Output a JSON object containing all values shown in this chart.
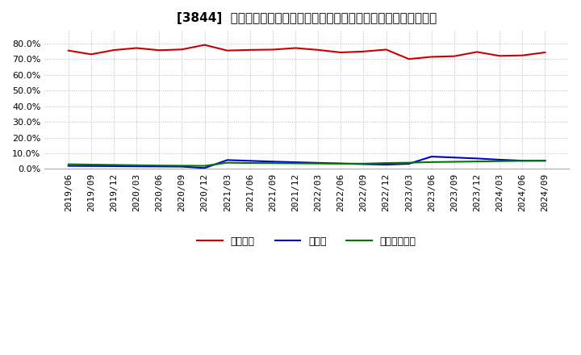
{
  "title": "[3844]  自己資本、のれん、繰延税金資産の総資産に対する比率の推移",
  "ylim": [
    0.0,
    0.88
  ],
  "yticks": [
    0.0,
    0.1,
    0.2,
    0.3,
    0.4,
    0.5,
    0.6,
    0.7,
    0.8
  ],
  "dates": [
    "2019/06",
    "2019/09",
    "2019/12",
    "2020/03",
    "2020/06",
    "2020/09",
    "2020/12",
    "2021/03",
    "2021/06",
    "2021/09",
    "2021/12",
    "2022/03",
    "2022/06",
    "2022/09",
    "2022/12",
    "2023/03",
    "2023/06",
    "2023/09",
    "2023/12",
    "2024/03",
    "2024/06",
    "2024/09"
  ],
  "jikoshihon": [
    0.754,
    0.73,
    0.757,
    0.77,
    0.756,
    0.761,
    0.79,
    0.754,
    0.758,
    0.76,
    0.77,
    0.758,
    0.742,
    0.748,
    0.76,
    0.7,
    0.714,
    0.718,
    0.745,
    0.72,
    0.723,
    0.742
  ],
  "noren": [
    0.02,
    0.019,
    0.018,
    0.017,
    0.016,
    0.015,
    0.006,
    0.057,
    0.052,
    0.047,
    0.043,
    0.039,
    0.035,
    0.031,
    0.028,
    0.033,
    0.079,
    0.073,
    0.067,
    0.059,
    0.053,
    0.052
  ],
  "kurinobe": [
    0.03,
    0.028,
    0.026,
    0.024,
    0.022,
    0.021,
    0.02,
    0.04,
    0.038,
    0.037,
    0.036,
    0.035,
    0.034,
    0.034,
    0.038,
    0.04,
    0.044,
    0.046,
    0.048,
    0.05,
    0.052,
    0.054
  ],
  "jikoshihon_color": "#cc0000",
  "noren_color": "#0000cc",
  "kurinobe_color": "#007700",
  "legend_labels": [
    "自己資本",
    "のれん",
    "繰延税金資産"
  ],
  "background_color": "#ffffff",
  "grid_color": "#aaaaaa",
  "title_fontsize": 11,
  "tick_fontsize": 8,
  "legend_fontsize": 9
}
